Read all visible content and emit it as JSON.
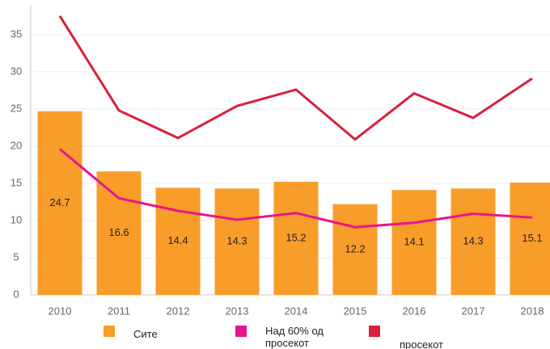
{
  "chart_data": {
    "type": "bar-line",
    "categories": [
      "2010",
      "2011",
      "2012",
      "2013",
      "2014",
      "2015",
      "2016",
      "2017",
      "2018"
    ],
    "series": [
      {
        "name": "Сите",
        "type": "bar",
        "color": "#f99d2a",
        "values": [
          24.7,
          16.6,
          14.4,
          14.3,
          15.2,
          12.2,
          14.1,
          14.3,
          15.1
        ]
      },
      {
        "name": "Над 60% од просекот",
        "type": "line",
        "color": "#e6168b",
        "values": [
          19.6,
          13.0,
          11.3,
          10.1,
          11.0,
          9.1,
          9.7,
          10.9,
          10.4
        ]
      },
      {
        "name": "просекот",
        "type": "line",
        "color": "#d8213b",
        "values": [
          37.5,
          24.8,
          21.1,
          25.4,
          27.6,
          20.9,
          27.1,
          23.8,
          29.1
        ]
      }
    ],
    "ylim": [
      0,
      39
    ],
    "yticks": [
      0,
      5,
      10,
      15,
      20,
      25,
      30,
      35
    ],
    "grid": true
  }
}
